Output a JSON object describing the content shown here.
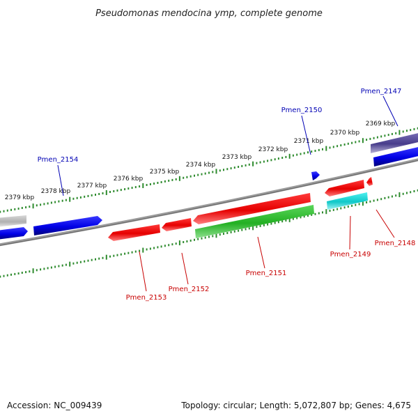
{
  "title": "Pseudomonas mendocina ymp, complete genome",
  "footer": {
    "accession": "Accession: NC_009439",
    "summary": "Topology: circular; Length: 5,072,807 bp; Genes: 4,675"
  },
  "colors": {
    "background": "#ffffff",
    "backbone": "#808080",
    "ticks": "#2e8b2e",
    "label_forward": "#0000b4",
    "label_reverse": "#c80000",
    "leader_forward": "#0000b4",
    "leader_reverse": "#c80000"
  },
  "kbp_ticks": [
    "2379 kbp",
    "2378 kbp",
    "2377 kbp",
    "2376 kbp",
    "2375 kbp",
    "2374 kbp",
    "2373 kbp",
    "2372 kbp",
    "2371 kbp",
    "2370 kbp",
    "2369 kbp"
  ],
  "genes": [
    {
      "id": "Pmen_2154",
      "strand": "forward",
      "color": "blue"
    },
    {
      "id": "Pmen_2150",
      "strand": "forward",
      "color": "blue"
    },
    {
      "id": "Pmen_2147",
      "strand": "forward",
      "color": "slate-purple"
    },
    {
      "id": "Pmen_2153",
      "strand": "reverse",
      "color": "red"
    },
    {
      "id": "Pmen_2152",
      "strand": "reverse",
      "color": "red"
    },
    {
      "id": "Pmen_2151",
      "strand": "reverse",
      "color": "green"
    },
    {
      "id": "Pmen_2149",
      "strand": "reverse",
      "color": "cyan"
    },
    {
      "id": "Pmen_2148",
      "strand": "reverse",
      "color": "red"
    }
  ]
}
